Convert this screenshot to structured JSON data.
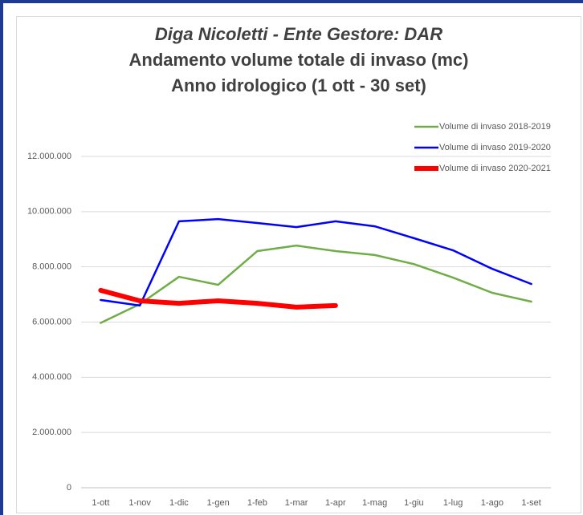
{
  "chart_data": {
    "type": "line",
    "title": "Diga Nicoletti - Ente Gestore: DAR",
    "subtitle": [
      "Andamento volume totale di invaso (mc)",
      "Anno idrologico (1 ott - 30 set)"
    ],
    "categories": [
      "1-ott",
      "1-nov",
      "1-dic",
      "1-gen",
      "1-feb",
      "1-mar",
      "1-apr",
      "1-mag",
      "1-giu",
      "1-lug",
      "1-ago",
      "1-set"
    ],
    "series": [
      {
        "name": "Volume di invaso 2018-2019",
        "color": "#70ad47",
        "values": [
          5970000,
          6650000,
          7640000,
          7350000,
          8570000,
          8770000,
          8570000,
          8430000,
          8100000,
          7610000,
          7060000,
          6740000
        ]
      },
      {
        "name": "Volume di invaso 2019-2020",
        "color": "#0000ff",
        "values": [
          6800000,
          6600000,
          9650000,
          9730000,
          9590000,
          9440000,
          9650000,
          9470000,
          9040000,
          8600000,
          7930000,
          7380000
        ]
      },
      {
        "name": "Volume di invaso 2020-2021",
        "color": "#ff0000",
        "values": [
          7150000,
          6770000,
          6680000,
          6770000,
          6680000,
          6540000,
          6600000,
          null,
          null,
          null,
          null,
          null
        ]
      }
    ],
    "ylim": [
      0,
      12000000
    ],
    "yticks": [
      0,
      {
        "value": 2000000,
        "label": "2.000.000"
      },
      {
        "value": 4000000,
        "label": "4.000.000"
      },
      {
        "value": 6000000,
        "label": "6.000.000"
      },
      {
        "value": 8000000,
        "label": "8.000.000"
      },
      {
        "value": 10000000,
        "label": "10.000.000"
      },
      {
        "value": 12000000,
        "label": "12.000.000"
      }
    ],
    "grid": true,
    "legend": "top-right"
  }
}
